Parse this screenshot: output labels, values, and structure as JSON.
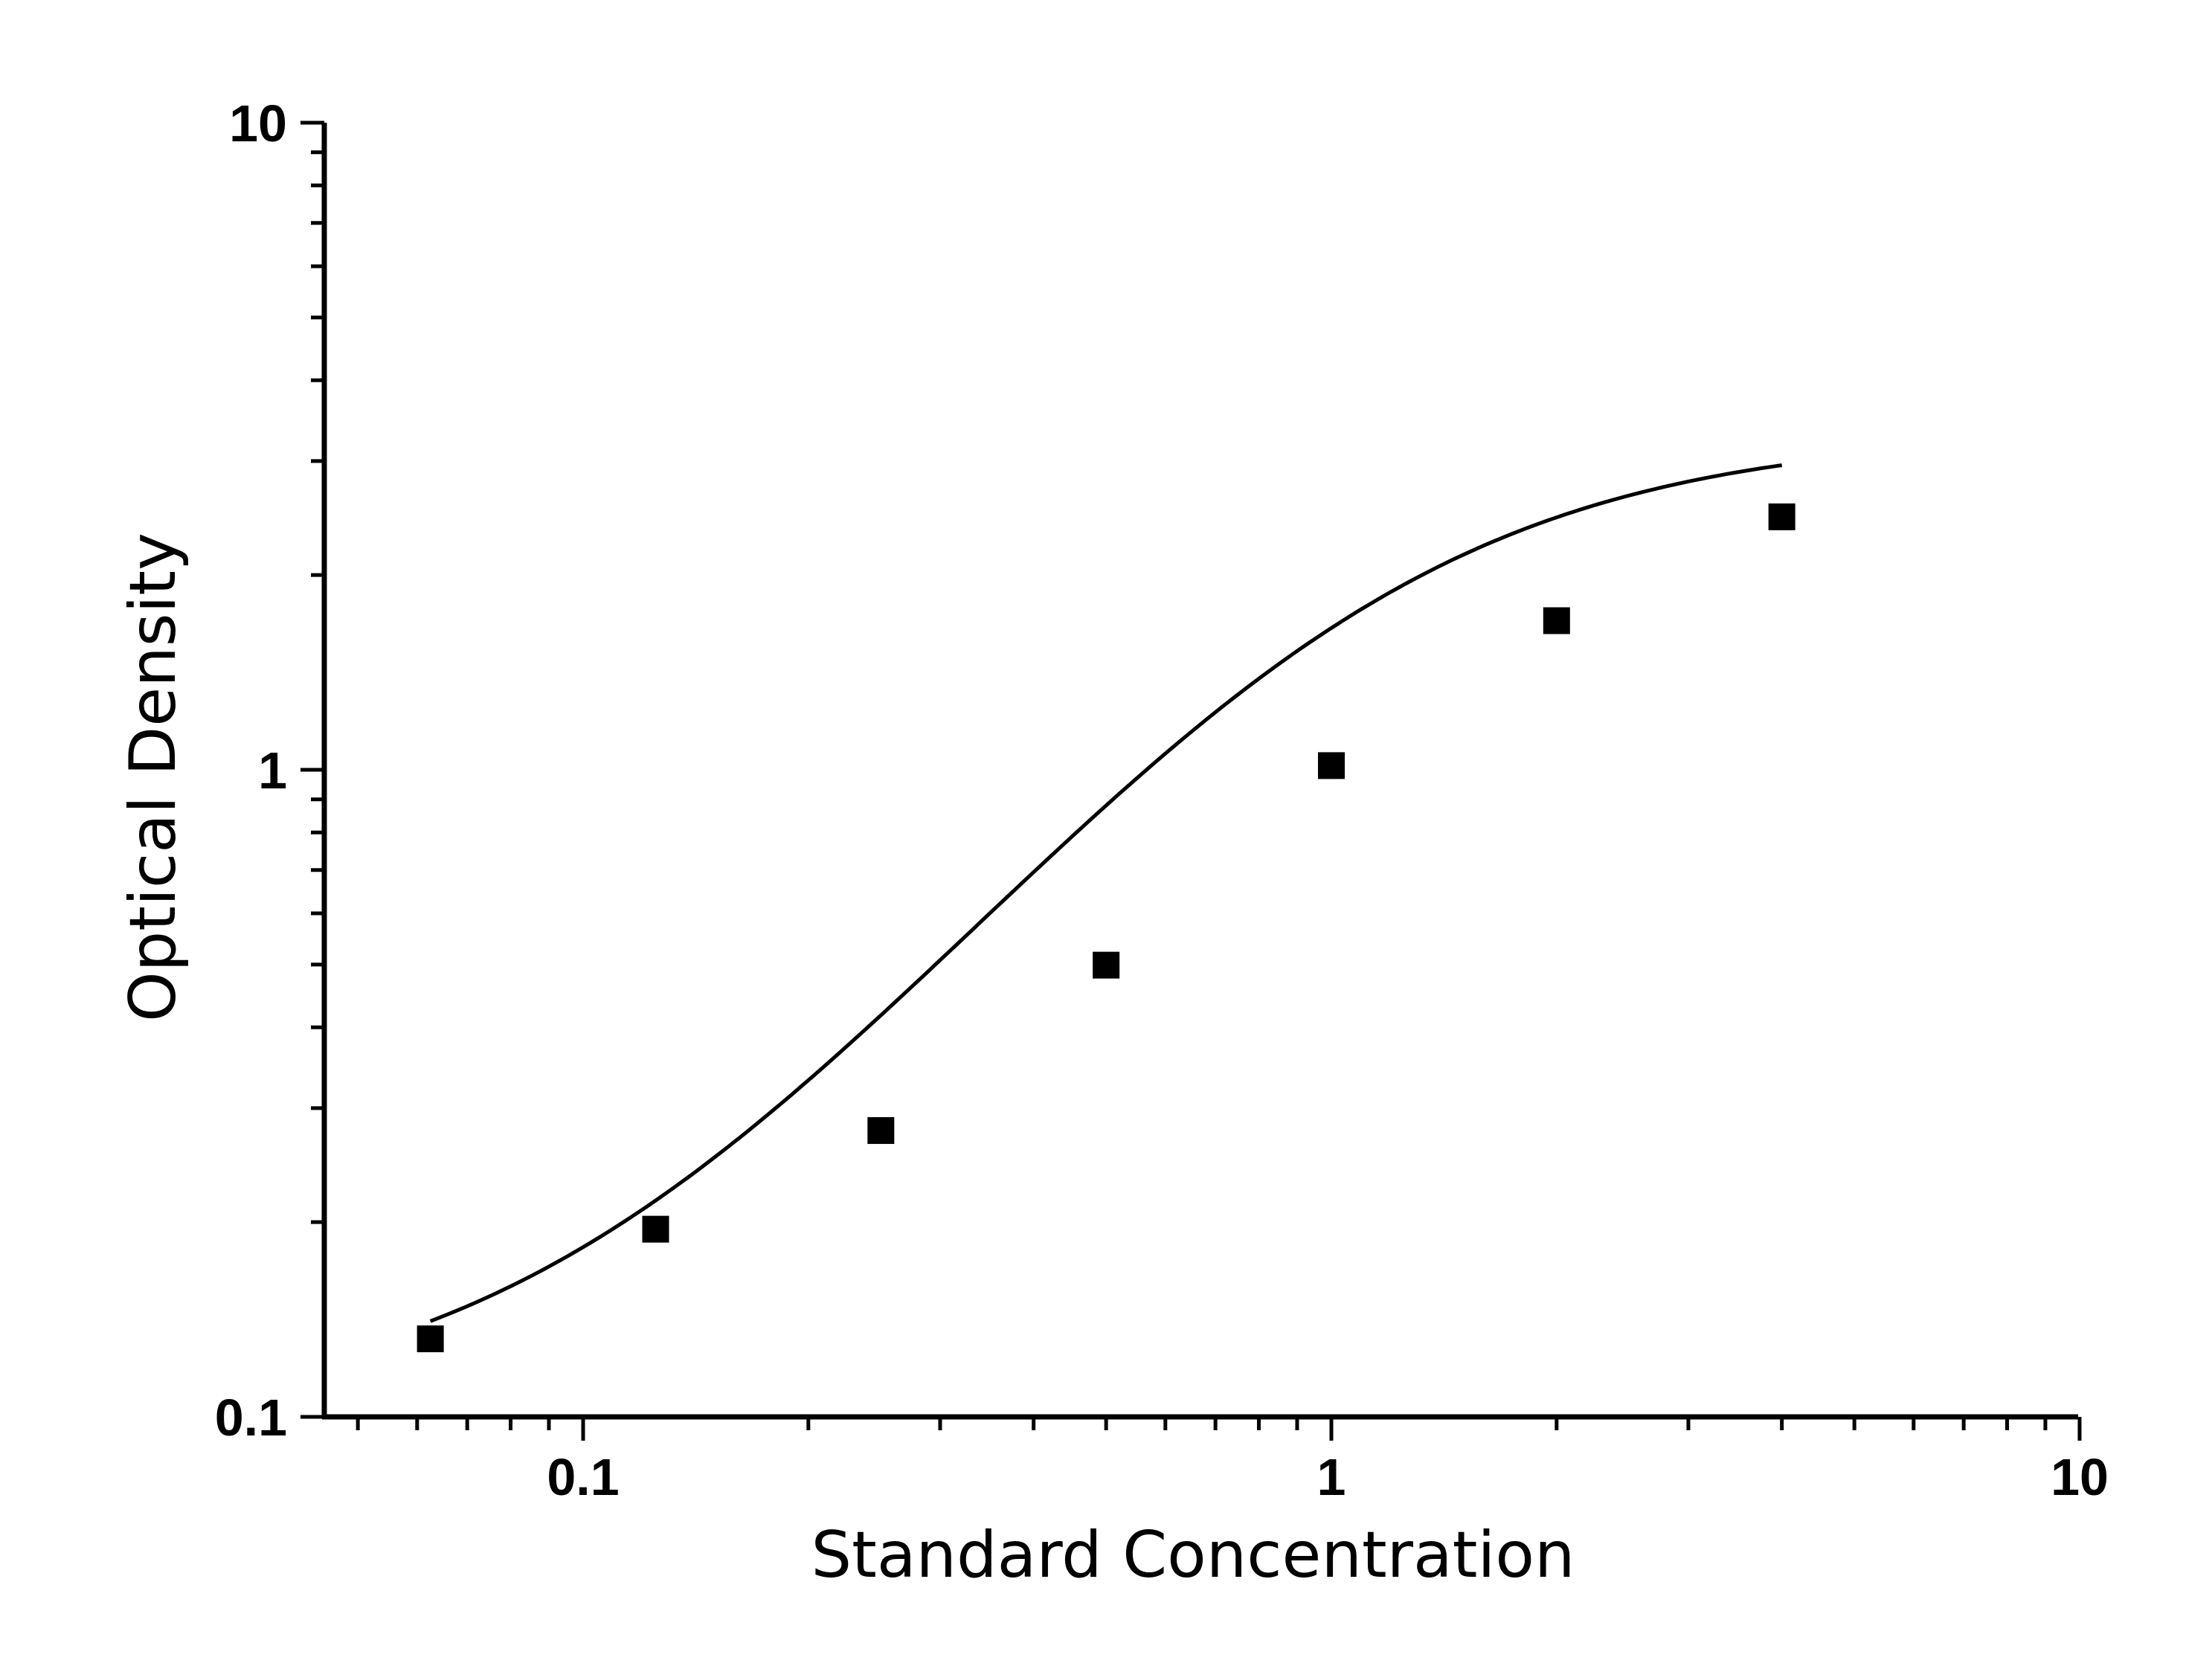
{
  "chart_data": {
    "type": "scatter",
    "title": "",
    "xlabel": "Standard Concentration",
    "ylabel": "Optical Density",
    "xscale": "log",
    "yscale": "log",
    "xlim": [
      0.05,
      10
    ],
    "ylim": [
      0.1,
      10
    ],
    "x_ticks": [
      {
        "value": 0.1,
        "label": "0.1"
      },
      {
        "value": 1,
        "label": "1"
      },
      {
        "value": 10,
        "label": "10"
      }
    ],
    "y_ticks": [
      {
        "value": 0.1,
        "label": "0.1"
      },
      {
        "value": 1,
        "label": "1"
      },
      {
        "value": 10,
        "label": "10"
      }
    ],
    "grid": false,
    "legend": false,
    "series": [
      {
        "marker": "square",
        "color": "#000000",
        "x": [
          0.0625,
          0.125,
          0.25,
          0.5,
          1,
          2,
          4
        ],
        "y": [
          0.132,
          0.195,
          0.277,
          0.499,
          1.015,
          1.7,
          2.46
        ]
      }
    ],
    "fit_curve": {
      "model": "4PL",
      "color": "#000000",
      "x_range": [
        0.0625,
        4
      ],
      "params": {
        "A": 0.1,
        "D": 3.31,
        "C": 1.04,
        "B": 1.55
      }
    }
  }
}
